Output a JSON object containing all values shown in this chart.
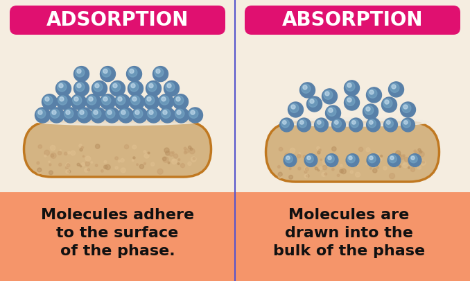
{
  "bg_color": "#f5ede0",
  "panel_divider_color": "#5555cc",
  "title_bg_color": "#e01070",
  "title_text_color": "#ffffff",
  "title_left": "ADSORPTION",
  "title_right": "ABSORPTION",
  "title_fontsize": 20,
  "capsule_fill_color": "#d4b483",
  "capsule_edge_color": "#c07820",
  "capsule_top_color": "#f0ebe0",
  "ball_base": "#5880a8",
  "ball_mid": "#7aaac8",
  "ball_hi": "#c8e0f0",
  "bottom_bg_color": "#f5956a",
  "bottom_text_color": "#111111",
  "text_left": "Molecules adhere\nto the surface\nof the phase.",
  "text_right": "Molecules are\ndrawn into the\nbulk of the phase",
  "text_fontsize": 16,
  "fig_width": 6.78,
  "fig_height": 4.05,
  "dpi": 100
}
